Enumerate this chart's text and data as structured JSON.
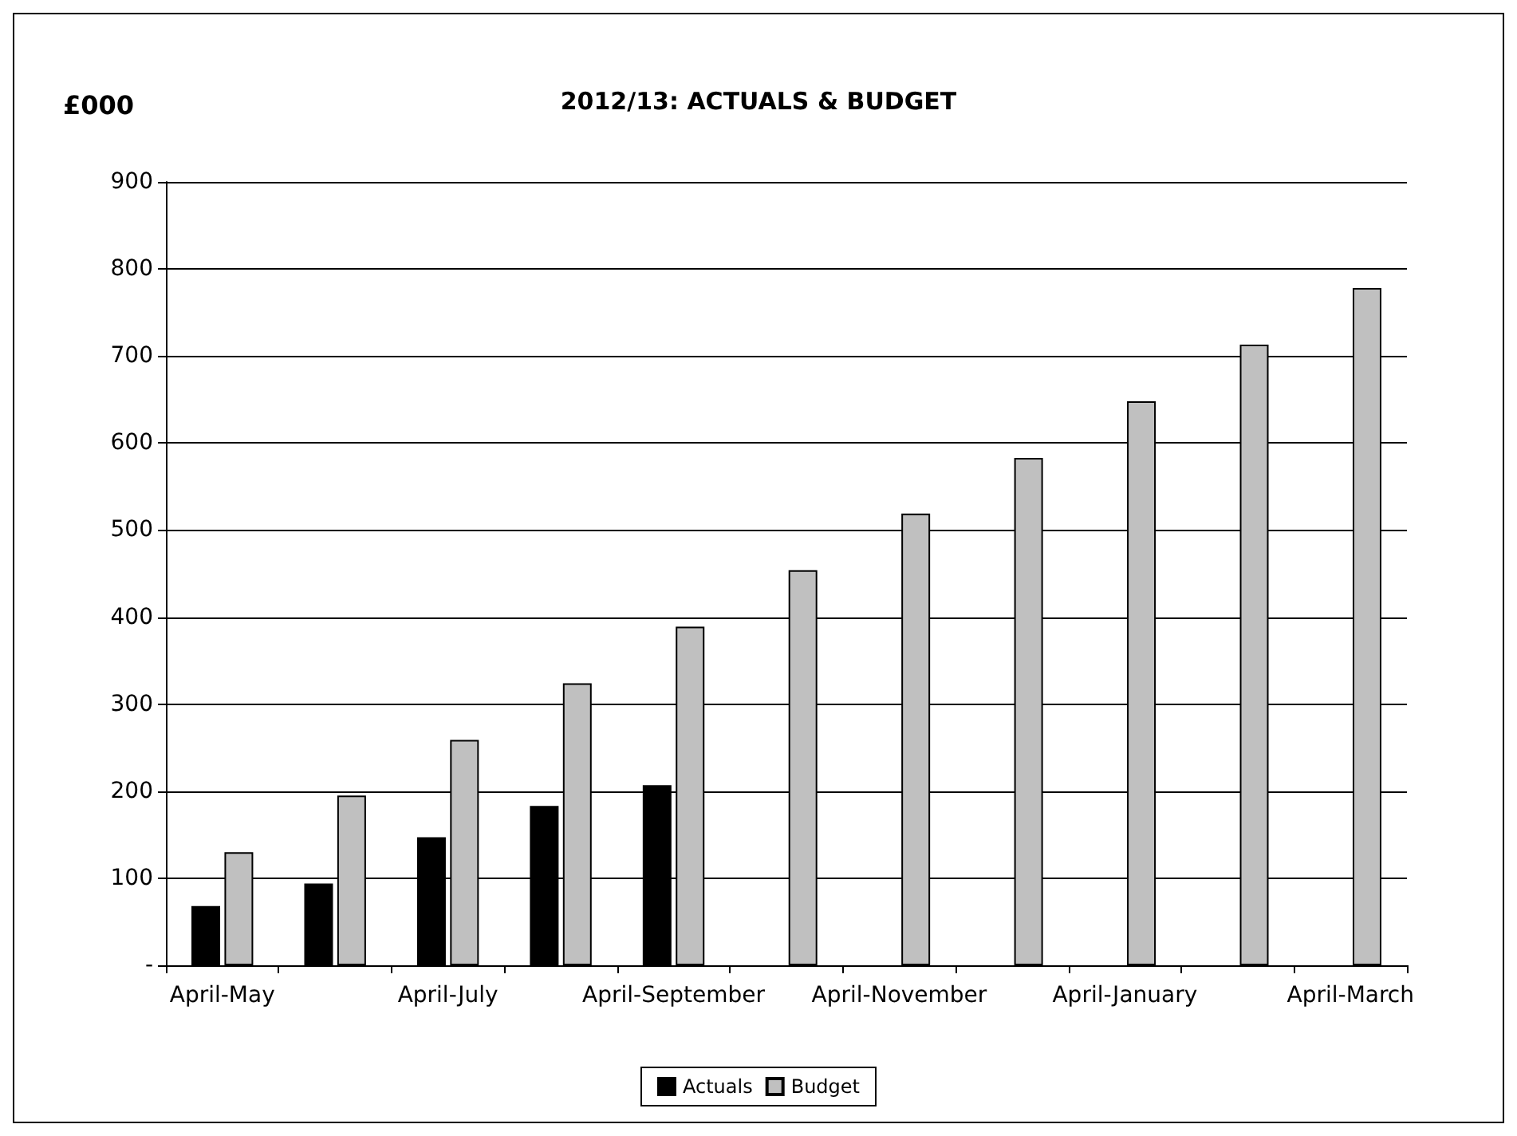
{
  "chart_data": {
    "type": "bar",
    "title": "2012/13: ACTUALS & BUDGET",
    "ylabel": "£000",
    "categories": [
      "April-May",
      null,
      "April-July",
      null,
      "April-September",
      null,
      "April-November",
      null,
      "April-January",
      null,
      "April-March"
    ],
    "series": [
      {
        "name": "Actuals",
        "color": "#000000",
        "values": [
          68,
          94,
          147,
          183,
          207,
          null,
          null,
          null,
          null,
          null,
          null
        ]
      },
      {
        "name": "Budget",
        "color": "#c0c0c0",
        "values": [
          130,
          195,
          259,
          324,
          389,
          454,
          519,
          583,
          648,
          713,
          778
        ]
      }
    ],
    "ylim": [
      0,
      900
    ],
    "yticks": [
      {
        "value": 0,
        "label": "-"
      },
      100,
      200,
      300,
      400,
      500,
      600,
      700,
      800,
      900
    ],
    "grid": "y",
    "legend": "bottom"
  }
}
